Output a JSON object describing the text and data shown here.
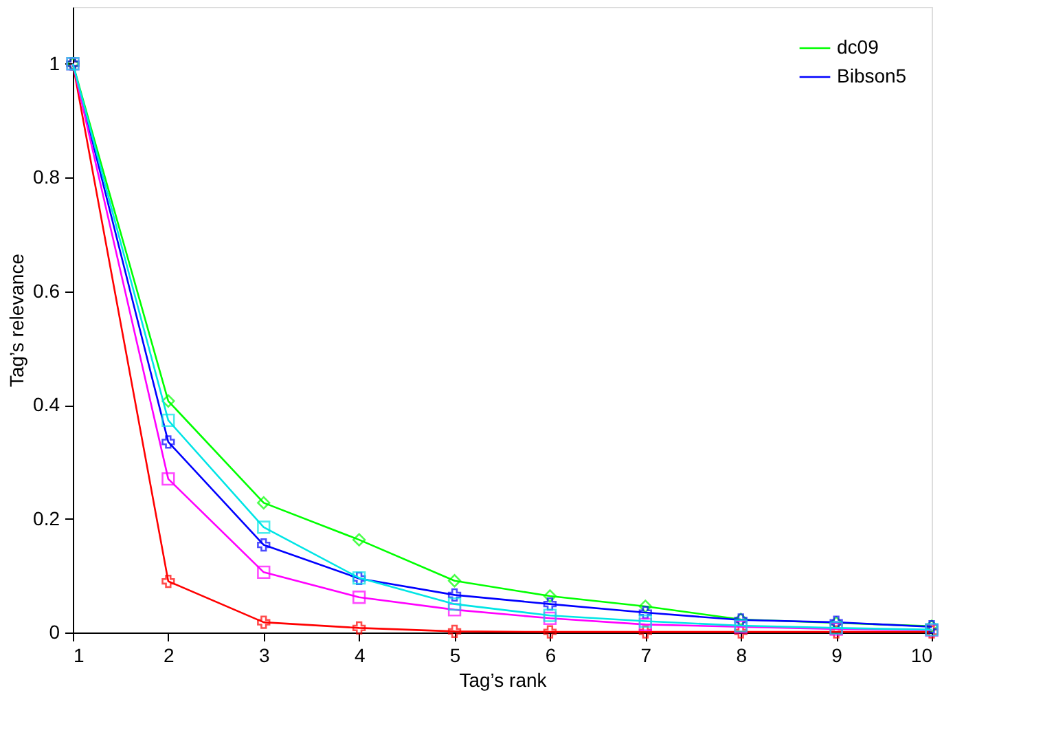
{
  "chart_data": {
    "type": "line",
    "xlabel": "Tag’s rank",
    "ylabel": "Tag’s relevance",
    "x": [
      1,
      2,
      3,
      4,
      5,
      6,
      7,
      8,
      9,
      10
    ],
    "xlim": [
      1,
      10
    ],
    "xticks": [
      1,
      2,
      3,
      4,
      5,
      6,
      7,
      8,
      9,
      10
    ],
    "ylim": [
      0,
      1.1
    ],
    "yticks": [
      0,
      0.2,
      0.4,
      0.6,
      0.8,
      1
    ],
    "grid": false,
    "legend": "top right",
    "series": [
      {
        "color": "#ff0000",
        "marker": "cross",
        "values": [
          1,
          0.09,
          0.018,
          0.008,
          0.002,
          0.001,
          0.001,
          0.001,
          0.001,
          0.001
        ]
      },
      {
        "name": "dc09",
        "color": "#00ff00",
        "marker": "diamond",
        "values": [
          1,
          0.407,
          0.228,
          0.163,
          0.091,
          0.064,
          0.046,
          0.023,
          0.017,
          0.011
        ]
      },
      {
        "name": "Bibson5",
        "color": "#0000ff",
        "marker": "cross",
        "values": [
          1,
          0.335,
          0.154,
          0.095,
          0.066,
          0.05,
          0.035,
          0.022,
          0.018,
          0.01
        ]
      },
      {
        "color": "#ff00ff",
        "marker": "square",
        "values": [
          1,
          0.27,
          0.106,
          0.062,
          0.04,
          0.025,
          0.014,
          0.01,
          0.006,
          0.004
        ]
      },
      {
        "color": "#00e5e5",
        "marker": "square",
        "values": [
          1,
          0.373,
          0.185,
          0.096,
          0.05,
          0.03,
          0.02,
          0.012,
          0.008,
          0.005
        ]
      }
    ]
  }
}
